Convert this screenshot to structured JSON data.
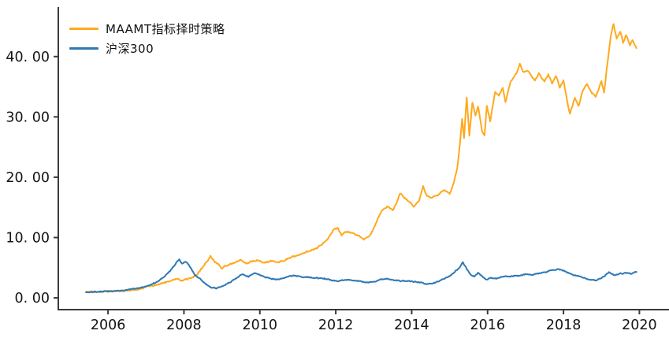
{
  "chart_data": {
    "type": "line",
    "title": "",
    "xlabel": "",
    "ylabel": "",
    "grid": false,
    "legend_position": "upper-left",
    "xlim": [
      2004.69,
      2020.78
    ],
    "ylim": [
      -1.95,
      48.2
    ],
    "axis_color": "#3a3a3a",
    "text_color": "#141414",
    "x_ticks": {
      "values": [
        2006,
        2008,
        2010,
        2012,
        2014,
        2016,
        2018,
        2020
      ],
      "labels": [
        "2006",
        "2008",
        "2010",
        "2012",
        "2014",
        "2016",
        "2018",
        "2020"
      ]
    },
    "y_ticks": {
      "values": [
        0,
        10,
        20,
        30,
        40
      ],
      "labels": [
        "0. 00",
        "10. 00",
        "20. 00",
        "30. 00",
        "40. 00"
      ]
    },
    "series": [
      {
        "name": "MAAMT指标择时策略",
        "color": "#FFA91E",
        "points": [
          [
            2005.42,
            1.0
          ],
          [
            2005.6,
            1.02
          ],
          [
            2005.8,
            1.05
          ],
          [
            2006.0,
            1.1
          ],
          [
            2006.2,
            1.12
          ],
          [
            2006.45,
            1.2
          ],
          [
            2006.7,
            1.35
          ],
          [
            2006.9,
            1.55
          ],
          [
            2007.05,
            1.9
          ],
          [
            2007.15,
            2.05
          ],
          [
            2007.3,
            2.2
          ],
          [
            2007.5,
            2.5
          ],
          [
            2007.7,
            2.9
          ],
          [
            2007.8,
            3.2
          ],
          [
            2007.95,
            2.8
          ],
          [
            2008.1,
            3.1
          ],
          [
            2008.25,
            3.5
          ],
          [
            2008.4,
            4.3
          ],
          [
            2008.55,
            5.6
          ],
          [
            2008.7,
            6.9
          ],
          [
            2008.8,
            6.1
          ],
          [
            2008.9,
            5.6
          ],
          [
            2009.0,
            4.9
          ],
          [
            2009.1,
            5.3
          ],
          [
            2009.3,
            5.8
          ],
          [
            2009.5,
            6.2
          ],
          [
            2009.65,
            5.7
          ],
          [
            2009.8,
            6.1
          ],
          [
            2009.95,
            6.3
          ],
          [
            2010.1,
            5.8
          ],
          [
            2010.3,
            6.1
          ],
          [
            2010.5,
            5.9
          ],
          [
            2010.7,
            6.4
          ],
          [
            2010.9,
            6.9
          ],
          [
            2011.05,
            7.2
          ],
          [
            2011.2,
            7.6
          ],
          [
            2011.35,
            7.9
          ],
          [
            2011.5,
            8.2
          ],
          [
            2011.65,
            9.0
          ],
          [
            2011.8,
            9.8
          ],
          [
            2011.95,
            11.3
          ],
          [
            2012.05,
            11.6
          ],
          [
            2012.15,
            10.4
          ],
          [
            2012.3,
            11.0
          ],
          [
            2012.45,
            10.6
          ],
          [
            2012.6,
            10.3
          ],
          [
            2012.75,
            9.7
          ],
          [
            2012.9,
            10.2
          ],
          [
            2013.0,
            11.5
          ],
          [
            2013.1,
            13.0
          ],
          [
            2013.2,
            14.3
          ],
          [
            2013.35,
            15.1
          ],
          [
            2013.5,
            14.5
          ],
          [
            2013.6,
            15.6
          ],
          [
            2013.7,
            17.4
          ],
          [
            2013.8,
            16.7
          ],
          [
            2013.95,
            15.8
          ],
          [
            2014.05,
            15.2
          ],
          [
            2014.2,
            16.2
          ],
          [
            2014.3,
            18.5
          ],
          [
            2014.4,
            16.8
          ],
          [
            2014.55,
            16.6
          ],
          [
            2014.7,
            17.1
          ],
          [
            2014.85,
            17.9
          ],
          [
            2015.0,
            17.2
          ],
          [
            2015.1,
            18.8
          ],
          [
            2015.2,
            21.5
          ],
          [
            2015.27,
            25.5
          ],
          [
            2015.33,
            29.7
          ],
          [
            2015.38,
            26.5
          ],
          [
            2015.45,
            33.3
          ],
          [
            2015.52,
            27.0
          ],
          [
            2015.6,
            32.5
          ],
          [
            2015.68,
            30.2
          ],
          [
            2015.75,
            31.8
          ],
          [
            2015.85,
            27.8
          ],
          [
            2015.92,
            26.8
          ],
          [
            2015.98,
            31.8
          ],
          [
            2016.07,
            29.3
          ],
          [
            2016.2,
            34.2
          ],
          [
            2016.3,
            33.6
          ],
          [
            2016.4,
            34.8
          ],
          [
            2016.47,
            32.4
          ],
          [
            2016.6,
            35.7
          ],
          [
            2016.75,
            37.1
          ],
          [
            2016.85,
            38.7
          ],
          [
            2016.95,
            37.3
          ],
          [
            2017.05,
            37.7
          ],
          [
            2017.15,
            36.7
          ],
          [
            2017.25,
            36.0
          ],
          [
            2017.35,
            37.2
          ],
          [
            2017.5,
            35.8
          ],
          [
            2017.6,
            37.0
          ],
          [
            2017.7,
            35.6
          ],
          [
            2017.8,
            36.8
          ],
          [
            2017.9,
            34.9
          ],
          [
            2018.0,
            36.0
          ],
          [
            2018.1,
            32.5
          ],
          [
            2018.17,
            30.5
          ],
          [
            2018.3,
            33.2
          ],
          [
            2018.4,
            31.8
          ],
          [
            2018.5,
            34.3
          ],
          [
            2018.62,
            35.4
          ],
          [
            2018.75,
            34.0
          ],
          [
            2018.85,
            33.4
          ],
          [
            2019.0,
            35.9
          ],
          [
            2019.07,
            33.9
          ],
          [
            2019.15,
            38.5
          ],
          [
            2019.25,
            43.5
          ],
          [
            2019.32,
            45.4
          ],
          [
            2019.4,
            43.0
          ],
          [
            2019.5,
            44.2
          ],
          [
            2019.57,
            42.3
          ],
          [
            2019.65,
            43.6
          ],
          [
            2019.75,
            41.8
          ],
          [
            2019.82,
            42.7
          ],
          [
            2019.92,
            41.4
          ]
        ]
      },
      {
        "name": "沪深300",
        "color": "#2E78B5",
        "points": [
          [
            2005.42,
            1.0
          ],
          [
            2005.6,
            1.0
          ],
          [
            2005.8,
            1.03
          ],
          [
            2006.0,
            1.1
          ],
          [
            2006.2,
            1.15
          ],
          [
            2006.45,
            1.3
          ],
          [
            2006.7,
            1.5
          ],
          [
            2006.9,
            1.75
          ],
          [
            2007.05,
            2.0
          ],
          [
            2007.2,
            2.4
          ],
          [
            2007.35,
            2.9
          ],
          [
            2007.5,
            3.6
          ],
          [
            2007.65,
            4.6
          ],
          [
            2007.8,
            5.9
          ],
          [
            2007.88,
            6.4
          ],
          [
            2007.95,
            5.7
          ],
          [
            2008.05,
            6.0
          ],
          [
            2008.15,
            5.2
          ],
          [
            2008.3,
            3.7
          ],
          [
            2008.45,
            3.0
          ],
          [
            2008.6,
            2.2
          ],
          [
            2008.72,
            1.7
          ],
          [
            2008.85,
            1.6
          ],
          [
            2009.0,
            1.9
          ],
          [
            2009.15,
            2.4
          ],
          [
            2009.3,
            2.9
          ],
          [
            2009.45,
            3.5
          ],
          [
            2009.55,
            3.9
          ],
          [
            2009.7,
            3.5
          ],
          [
            2009.85,
            4.1
          ],
          [
            2010.0,
            3.8
          ],
          [
            2010.15,
            3.4
          ],
          [
            2010.35,
            3.1
          ],
          [
            2010.5,
            3.0
          ],
          [
            2010.7,
            3.4
          ],
          [
            2010.9,
            3.7
          ],
          [
            2011.1,
            3.5
          ],
          [
            2011.3,
            3.4
          ],
          [
            2011.5,
            3.3
          ],
          [
            2011.7,
            3.2
          ],
          [
            2011.9,
            2.9
          ],
          [
            2012.1,
            2.8
          ],
          [
            2012.3,
            3.0
          ],
          [
            2012.5,
            2.9
          ],
          [
            2012.7,
            2.7
          ],
          [
            2012.9,
            2.6
          ],
          [
            2013.05,
            2.7
          ],
          [
            2013.2,
            3.1
          ],
          [
            2013.35,
            3.2
          ],
          [
            2013.5,
            2.9
          ],
          [
            2013.7,
            2.8
          ],
          [
            2013.9,
            2.8
          ],
          [
            2014.1,
            2.7
          ],
          [
            2014.25,
            2.5
          ],
          [
            2014.4,
            2.3
          ],
          [
            2014.6,
            2.5
          ],
          [
            2014.8,
            3.0
          ],
          [
            2015.0,
            3.6
          ],
          [
            2015.15,
            4.4
          ],
          [
            2015.25,
            4.9
          ],
          [
            2015.35,
            5.9
          ],
          [
            2015.45,
            4.8
          ],
          [
            2015.55,
            3.9
          ],
          [
            2015.65,
            3.5
          ],
          [
            2015.75,
            4.2
          ],
          [
            2015.85,
            3.7
          ],
          [
            2015.95,
            3.0
          ],
          [
            2016.1,
            3.3
          ],
          [
            2016.25,
            3.2
          ],
          [
            2016.4,
            3.5
          ],
          [
            2016.6,
            3.6
          ],
          [
            2016.8,
            3.7
          ],
          [
            2017.0,
            3.9
          ],
          [
            2017.2,
            3.9
          ],
          [
            2017.4,
            4.1
          ],
          [
            2017.6,
            4.4
          ],
          [
            2017.85,
            4.8
          ],
          [
            2018.0,
            4.5
          ],
          [
            2018.2,
            3.9
          ],
          [
            2018.4,
            3.6
          ],
          [
            2018.65,
            3.1
          ],
          [
            2018.85,
            2.9
          ],
          [
            2019.0,
            3.2
          ],
          [
            2019.2,
            4.3
          ],
          [
            2019.35,
            3.7
          ],
          [
            2019.5,
            4.0
          ],
          [
            2019.65,
            4.1
          ],
          [
            2019.8,
            4.0
          ],
          [
            2019.92,
            4.3
          ]
        ]
      }
    ]
  }
}
